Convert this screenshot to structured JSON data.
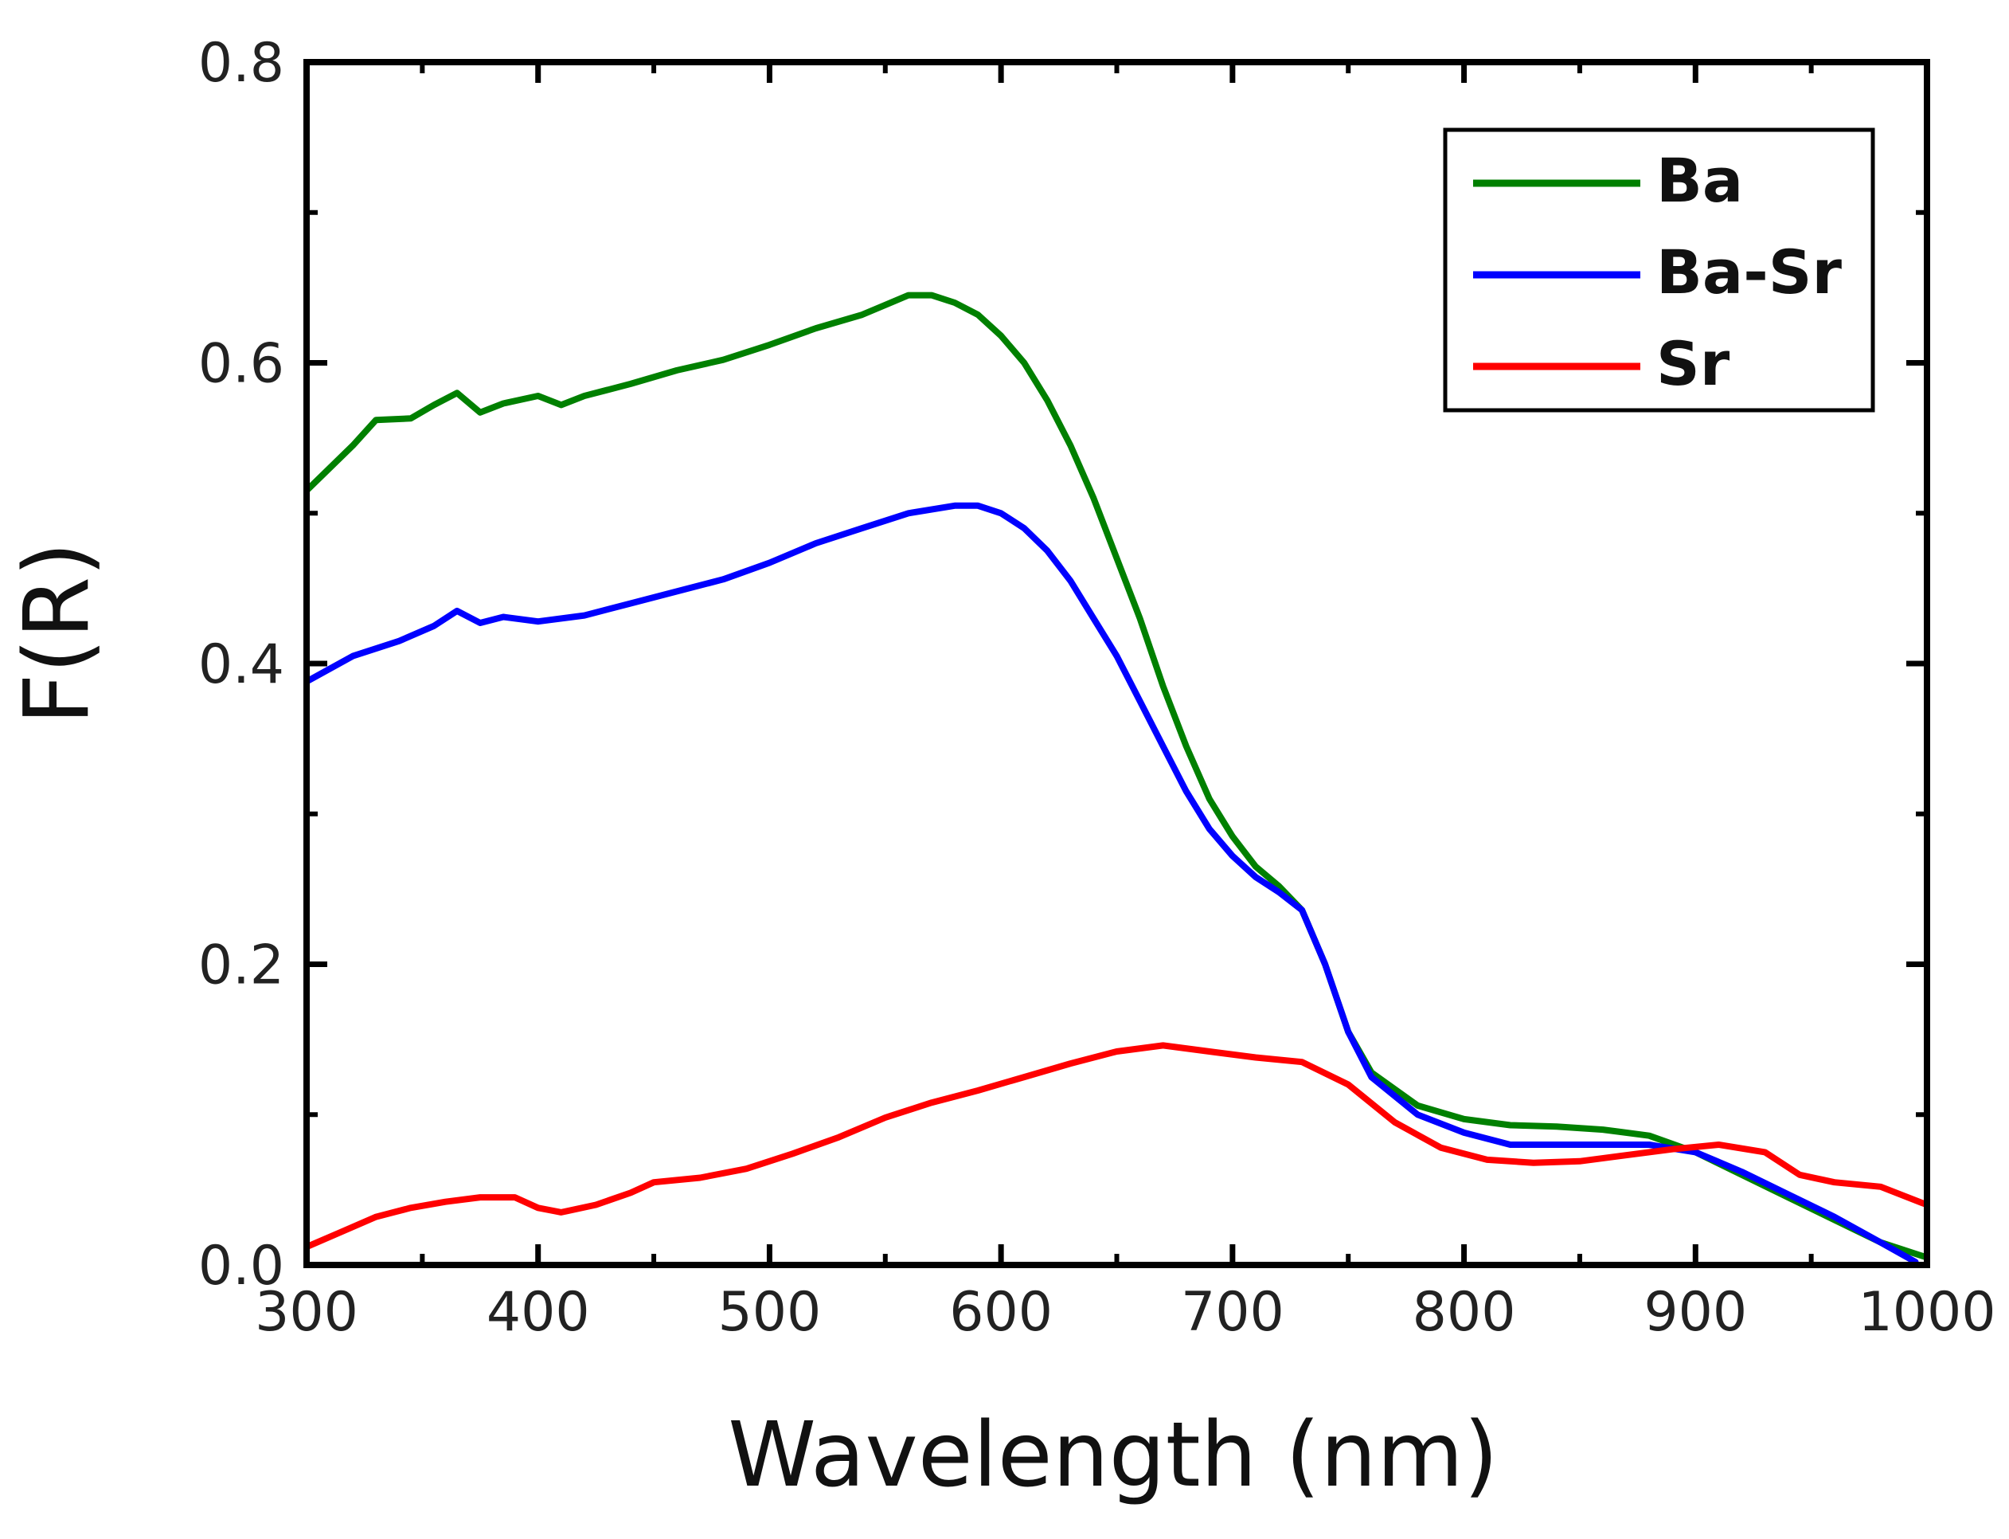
{
  "chart_data": {
    "type": "line",
    "title": "",
    "xlabel": "Wavelength (nm)",
    "ylabel": "F(R)",
    "xlim": [
      300,
      1000
    ],
    "ylim": [
      0.0,
      0.8
    ],
    "xticks": [
      "300",
      "400",
      "500",
      "600",
      "700",
      "800",
      "900",
      "1000"
    ],
    "yticks": [
      "0.0",
      "0.2",
      "0.4",
      "0.6",
      "0.8"
    ],
    "grid": false,
    "legend_position": "top-right",
    "series": [
      {
        "name": "Ba",
        "color": "#008000",
        "x": [
          300,
          320,
          330,
          345,
          355,
          365,
          375,
          385,
          400,
          410,
          420,
          440,
          460,
          480,
          500,
          520,
          540,
          560,
          570,
          580,
          590,
          600,
          610,
          620,
          630,
          640,
          650,
          660,
          670,
          680,
          690,
          700,
          710,
          720,
          730,
          740,
          750,
          760,
          780,
          800,
          820,
          840,
          860,
          880,
          900,
          920,
          940,
          960,
          980,
          1000
        ],
        "y": [
          0.515,
          0.545,
          0.562,
          0.563,
          0.572,
          0.58,
          0.567,
          0.573,
          0.578,
          0.572,
          0.578,
          0.586,
          0.595,
          0.602,
          0.612,
          0.623,
          0.632,
          0.645,
          0.645,
          0.64,
          0.632,
          0.618,
          0.6,
          0.575,
          0.545,
          0.51,
          0.47,
          0.43,
          0.385,
          0.345,
          0.31,
          0.285,
          0.265,
          0.252,
          0.236,
          0.2,
          0.155,
          0.128,
          0.106,
          0.097,
          0.093,
          0.092,
          0.09,
          0.086,
          0.075,
          0.06,
          0.045,
          0.03,
          0.015,
          0.005
        ]
      },
      {
        "name": "Ba-Sr",
        "color": "#0000ff",
        "x": [
          300,
          320,
          340,
          355,
          365,
          375,
          385,
          400,
          420,
          440,
          460,
          480,
          500,
          520,
          540,
          560,
          580,
          590,
          600,
          610,
          620,
          630,
          640,
          650,
          660,
          670,
          680,
          690,
          700,
          710,
          720,
          730,
          740,
          750,
          760,
          780,
          800,
          820,
          840,
          860,
          880,
          900,
          920,
          940,
          960,
          980,
          995
        ],
        "y": [
          0.388,
          0.405,
          0.415,
          0.425,
          0.435,
          0.427,
          0.431,
          0.428,
          0.432,
          0.44,
          0.448,
          0.456,
          0.467,
          0.48,
          0.49,
          0.5,
          0.505,
          0.505,
          0.5,
          0.49,
          0.475,
          0.455,
          0.43,
          0.405,
          0.375,
          0.345,
          0.315,
          0.29,
          0.272,
          0.258,
          0.248,
          0.236,
          0.2,
          0.155,
          0.125,
          0.1,
          0.088,
          0.08,
          0.08,
          0.08,
          0.08,
          0.075,
          0.062,
          0.047,
          0.032,
          0.015,
          0.002
        ]
      },
      {
        "name": "Sr",
        "color": "#ff0000",
        "x": [
          300,
          315,
          330,
          345,
          360,
          375,
          390,
          400,
          410,
          425,
          440,
          450,
          470,
          490,
          510,
          530,
          550,
          570,
          590,
          610,
          630,
          650,
          670,
          690,
          710,
          730,
          750,
          770,
          790,
          810,
          830,
          850,
          870,
          890,
          910,
          930,
          945,
          960,
          980,
          1000
        ],
        "y": [
          0.012,
          0.022,
          0.032,
          0.038,
          0.042,
          0.045,
          0.045,
          0.038,
          0.035,
          0.04,
          0.048,
          0.055,
          0.058,
          0.064,
          0.074,
          0.085,
          0.098,
          0.108,
          0.116,
          0.125,
          0.134,
          0.142,
          0.146,
          0.142,
          0.138,
          0.135,
          0.12,
          0.095,
          0.078,
          0.07,
          0.068,
          0.069,
          0.073,
          0.077,
          0.08,
          0.075,
          0.06,
          0.055,
          0.052,
          0.04
        ]
      }
    ]
  }
}
